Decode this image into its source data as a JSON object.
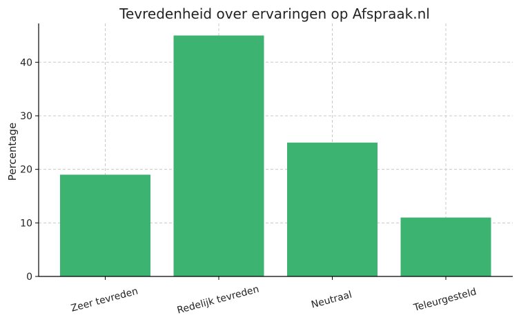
{
  "chart_data": {
    "type": "bar",
    "title": "Tevredenheid over ervaringen op Afspraak.nl",
    "xlabel": "",
    "ylabel": "Percentage",
    "categories": [
      "Zeer tevreden",
      "Redelijk tevreden",
      "Neutraal",
      "Teleurgesteld"
    ],
    "values": [
      19,
      45,
      25,
      11
    ],
    "ylim": [
      0,
      47.25
    ],
    "yticks": [
      0,
      10,
      20,
      30,
      40
    ],
    "grid": true,
    "bar_color": "#3cb371"
  }
}
